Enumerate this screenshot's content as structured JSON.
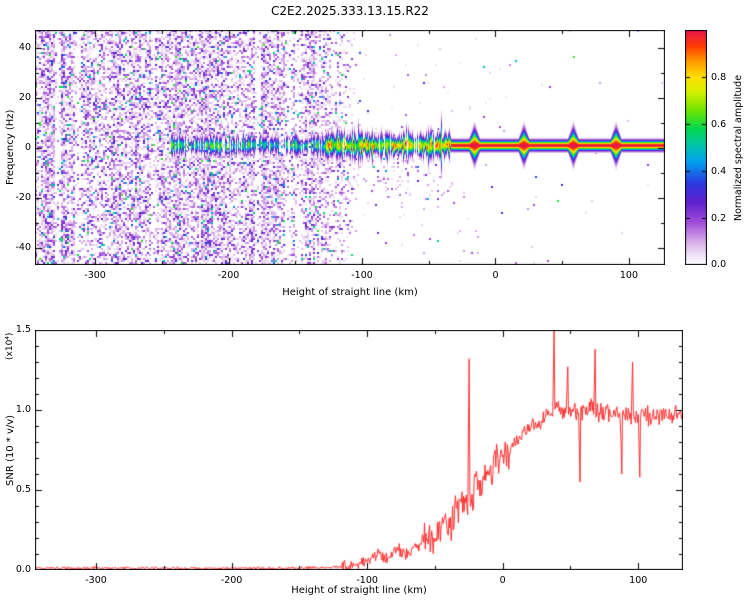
{
  "title": "C2E2.2025.333.13.15.R22",
  "chart_data": [
    {
      "type": "heatmap",
      "name": "doppler-spectrogram",
      "xlabel": "Height of straight line (km)",
      "ylabel": "Frequency (Hz)",
      "xlim": [
        -345,
        127
      ],
      "ylim": [
        -47,
        47
      ],
      "xticks": [
        -300,
        -200,
        -100,
        0,
        100
      ],
      "xtick_labels": [
        "-300",
        "-200",
        "-100",
        "0",
        "100"
      ],
      "yticks": [
        40,
        20,
        0,
        -20,
        -40
      ],
      "ytick_labels": [
        "40",
        "20",
        "0",
        "-20",
        "-40"
      ],
      "colorbar": {
        "label": "Normalized spectral amplitude",
        "tick_values": [
          0.0,
          0.2,
          0.4,
          0.6,
          0.8
        ],
        "tick_labels": [
          "0.0",
          "0.2",
          "0.4",
          "0.6",
          "0.8"
        ],
        "vmin": 0,
        "vmax": 1
      },
      "colormap_stops": [
        [
          0.0,
          "#ffffff"
        ],
        [
          0.04,
          "#f2e6f8"
        ],
        [
          0.1,
          "#d7aee8"
        ],
        [
          0.18,
          "#a24fd8"
        ],
        [
          0.27,
          "#6020d0"
        ],
        [
          0.35,
          "#2b3ae0"
        ],
        [
          0.44,
          "#00a0f0"
        ],
        [
          0.52,
          "#00c8a0"
        ],
        [
          0.58,
          "#00d850"
        ],
        [
          0.66,
          "#70e400"
        ],
        [
          0.74,
          "#d8f000"
        ],
        [
          0.8,
          "#ffe000"
        ],
        [
          0.87,
          "#ff9800"
        ],
        [
          0.93,
          "#ff4000"
        ],
        [
          1.0,
          "#e8144b"
        ]
      ],
      "noise_region": {
        "x_end": -127,
        "fade_end": -96,
        "density": 0.72
      },
      "signal": {
        "x_start": -243,
        "center_freq_hz": 1,
        "strong_from_x": -34,
        "blips_x": [
          -16,
          21,
          58,
          90
        ]
      },
      "seed": 77
    },
    {
      "type": "line",
      "name": "snr-profile",
      "xlabel": "Height of straight line (km)",
      "ylabel": "SNR (10 * v/v)",
      "y_scale_note": "(x10⁴)",
      "xlim": [
        -345,
        133
      ],
      "ylim": [
        0,
        1.5
      ],
      "xticks": [
        -300,
        -200,
        -100,
        0,
        100
      ],
      "xtick_labels": [
        "-300",
        "-200",
        "-100",
        "0",
        "100"
      ],
      "yticks": [
        0.0,
        0.5,
        1.0,
        1.5
      ],
      "ytick_labels": [
        "0.0",
        "0.5",
        "1.0",
        "1.5"
      ],
      "color": "#ff2020",
      "envelope": [
        [
          -345,
          0.012
        ],
        [
          -160,
          0.012
        ],
        [
          -130,
          0.015
        ],
        [
          -110,
          0.03
        ],
        [
          -100,
          0.06
        ],
        [
          -92,
          0.11
        ],
        [
          -86,
          0.07
        ],
        [
          -78,
          0.13
        ],
        [
          -70,
          0.1
        ],
        [
          -62,
          0.16
        ],
        [
          -55,
          0.22
        ],
        [
          -50,
          0.18
        ],
        [
          -45,
          0.3
        ],
        [
          -40,
          0.27
        ],
        [
          -35,
          0.38
        ],
        [
          -30,
          0.45
        ],
        [
          -26,
          0.42
        ],
        [
          -22,
          0.5
        ],
        [
          -15,
          0.55
        ],
        [
          -8,
          0.62
        ],
        [
          0,
          0.7
        ],
        [
          8,
          0.78
        ],
        [
          15,
          0.85
        ],
        [
          25,
          0.92
        ],
        [
          35,
          0.98
        ],
        [
          45,
          1.0
        ],
        [
          55,
          0.98
        ],
        [
          65,
          1.0
        ],
        [
          75,
          0.97
        ],
        [
          85,
          0.98
        ],
        [
          95,
          0.95
        ],
        [
          105,
          0.97
        ],
        [
          120,
          0.96
        ],
        [
          133,
          0.97
        ]
      ],
      "spikes": [
        [
          -25,
          1.32
        ],
        [
          38,
          1.5
        ],
        [
          48,
          1.27
        ],
        [
          68,
          1.38
        ],
        [
          96,
          1.3
        ]
      ],
      "dips": [
        [
          57,
          0.55
        ],
        [
          88,
          0.6
        ],
        [
          101,
          0.58
        ]
      ],
      "seed": 9
    }
  ]
}
